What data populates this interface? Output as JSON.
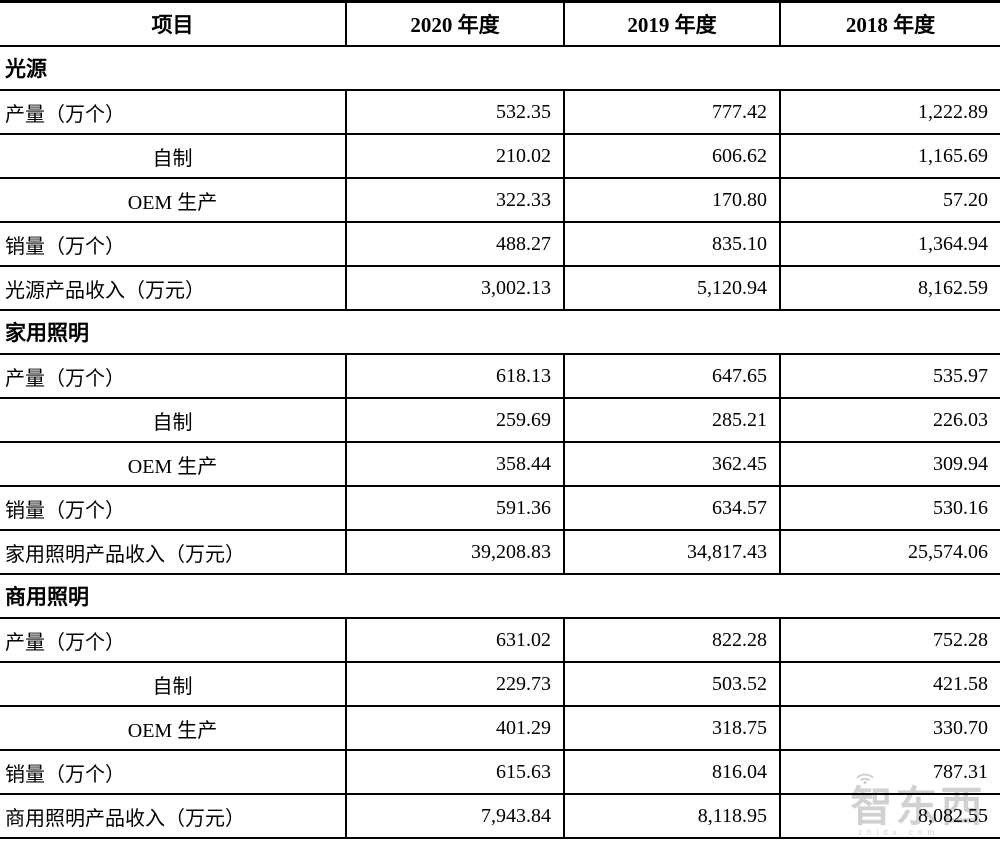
{
  "table": {
    "header": [
      "项目",
      "2020 年度",
      "2019 年度",
      "2018 年度"
    ],
    "sections": [
      {
        "name": "光源",
        "rows": [
          {
            "label": "产量（万个）",
            "indent": false,
            "values": [
              "532.35",
              "777.42",
              "1,222.89"
            ]
          },
          {
            "label": "自制",
            "indent": true,
            "values": [
              "210.02",
              "606.62",
              "1,165.69"
            ]
          },
          {
            "label": "OEM 生产",
            "indent": true,
            "values": [
              "322.33",
              "170.80",
              "57.20"
            ]
          },
          {
            "label": "销量（万个）",
            "indent": false,
            "values": [
              "488.27",
              "835.10",
              "1,364.94"
            ]
          },
          {
            "label": "光源产品收入（万元）",
            "indent": false,
            "values": [
              "3,002.13",
              "5,120.94",
              "8,162.59"
            ]
          }
        ]
      },
      {
        "name": "家用照明",
        "rows": [
          {
            "label": "产量（万个）",
            "indent": false,
            "values": [
              "618.13",
              "647.65",
              "535.97"
            ]
          },
          {
            "label": "自制",
            "indent": true,
            "values": [
              "259.69",
              "285.21",
              "226.03"
            ]
          },
          {
            "label": "OEM 生产",
            "indent": true,
            "values": [
              "358.44",
              "362.45",
              "309.94"
            ]
          },
          {
            "label": "销量（万个）",
            "indent": false,
            "values": [
              "591.36",
              "634.57",
              "530.16"
            ]
          },
          {
            "label": "家用照明产品收入（万元）",
            "indent": false,
            "values": [
              "39,208.83",
              "34,817.43",
              "25,574.06"
            ]
          }
        ]
      },
      {
        "name": "商用照明",
        "rows": [
          {
            "label": "产量（万个）",
            "indent": false,
            "values": [
              "631.02",
              "822.28",
              "752.28"
            ]
          },
          {
            "label": "自制",
            "indent": true,
            "values": [
              "229.73",
              "503.52",
              "421.58"
            ]
          },
          {
            "label": "OEM 生产",
            "indent": true,
            "values": [
              "401.29",
              "318.75",
              "330.70"
            ]
          },
          {
            "label": "销量（万个）",
            "indent": false,
            "values": [
              "615.63",
              "816.04",
              "787.31"
            ]
          },
          {
            "label": "商用照明产品收入（万元）",
            "indent": false,
            "values": [
              "7,943.84",
              "8,118.95",
              "8,082.55"
            ]
          }
        ]
      }
    ]
  },
  "watermark": {
    "text": "智东西",
    "caption": "zhidx.com"
  }
}
